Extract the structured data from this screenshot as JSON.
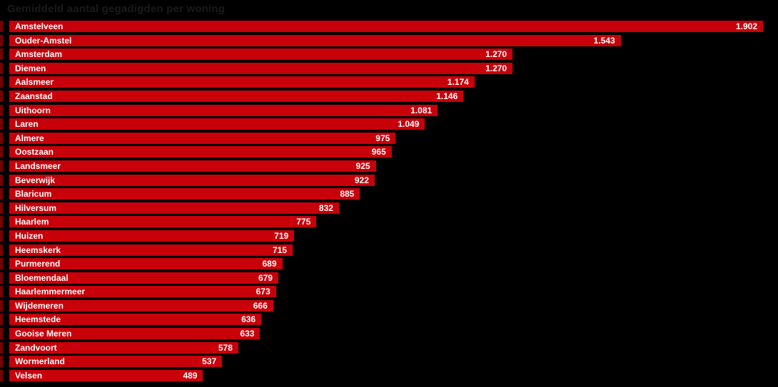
{
  "page": {
    "background": "#000000"
  },
  "chart_data": {
    "type": "bar",
    "orientation": "horizontal",
    "title": "Gemiddeld aantal gegadigden per woning",
    "categories": [
      "Amstelveen",
      "Ouder-Amstel",
      "Amsterdam",
      "Diemen",
      "Aalsmeer",
      "Zaanstad",
      "Uithoorn",
      "Laren",
      "Almere",
      "Oostzaan",
      "Landsmeer",
      "Beverwijk",
      "Blaricum",
      "Hilversum",
      "Haarlem",
      "Huizen",
      "Heemskerk",
      "Purmerend",
      "Bloemendaal",
      "Haarlemmermeer",
      "Wijdemeren",
      "Heemstede",
      "Gooise Meren",
      "Zandvoort",
      "Wormerland",
      "Velsen"
    ],
    "values": [
      1902,
      1543,
      1270,
      1270,
      1174,
      1146,
      1081,
      1049,
      975,
      965,
      925,
      922,
      885,
      832,
      775,
      719,
      715,
      689,
      679,
      673,
      666,
      636,
      633,
      578,
      537,
      489
    ],
    "display_values": [
      "1.902",
      "1.543",
      "1.270",
      "1.270",
      "1.174",
      "1.146",
      "1.081",
      "1.049",
      "975",
      "965",
      "925",
      "922",
      "885",
      "832",
      "775",
      "719",
      "715",
      "689",
      "679",
      "673",
      "666",
      "636",
      "633",
      "578",
      "537",
      "489"
    ],
    "xlim": [
      0,
      1902
    ],
    "grid": false,
    "legend": false,
    "bar_color": "#c8000a",
    "tick_color": "#7a0000",
    "value_label_color": "#ffffff",
    "category_label_color": "#ffffff",
    "title_color": "#1a1a1a"
  }
}
